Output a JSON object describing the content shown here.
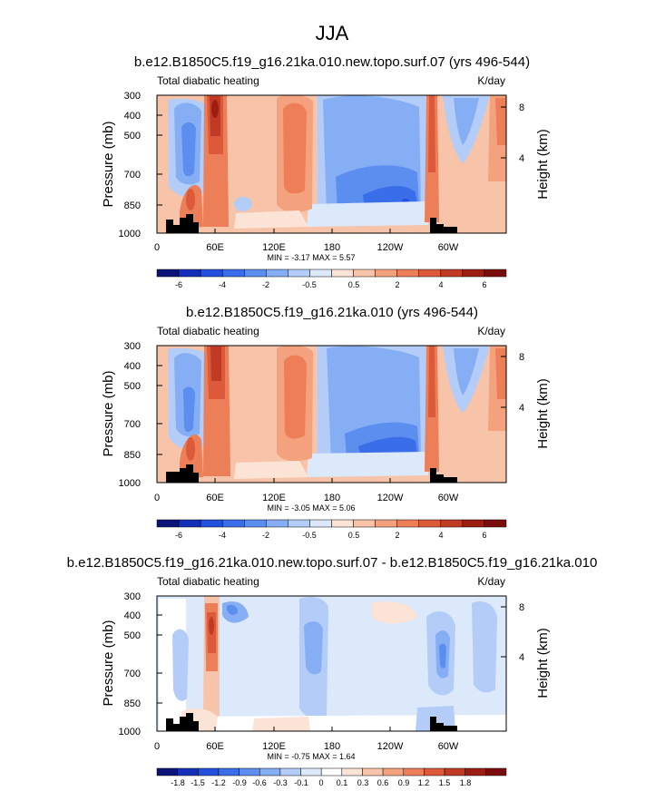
{
  "figure": {
    "title": "JJA"
  },
  "chart_data": [
    {
      "type": "heatmap",
      "title": "b.e12.B1850C5.f19_g16.21ka.010.new.topo.surf.07 (yrs 496-544)",
      "left_label": "Total diabatic heating",
      "right_label": "K/day",
      "ylabel": "Pressure (mb)",
      "ylabel_right": "Height (km)",
      "x_ticks": [
        "0",
        "60E",
        "120E",
        "180",
        "120W",
        "60W"
      ],
      "y_ticks": [
        "300",
        "400",
        "500",
        "700",
        "850",
        "1000"
      ],
      "height_ticks": [
        "8",
        "4"
      ],
      "stats": "MIN = -3.17 MAX = 5.57",
      "colorbar_labels": [
        "-6",
        "-4",
        "-2",
        "-0.5",
        "0.5",
        "2",
        "4",
        "6"
      ]
    },
    {
      "type": "heatmap",
      "title": "b.e12.B1850C5.f19_g16.21ka.010 (yrs 496-544)",
      "left_label": "Total diabatic heating",
      "right_label": "K/day",
      "ylabel": "Pressure (mb)",
      "ylabel_right": "Height (km)",
      "x_ticks": [
        "0",
        "60E",
        "120E",
        "180",
        "120W",
        "60W"
      ],
      "y_ticks": [
        "300",
        "400",
        "500",
        "700",
        "850",
        "1000"
      ],
      "height_ticks": [
        "8",
        "4"
      ],
      "stats": "MIN = -3.05 MAX = 5.06",
      "colorbar_labels": [
        "-6",
        "-4",
        "-2",
        "-0.5",
        "0.5",
        "2",
        "4",
        "6"
      ]
    },
    {
      "type": "heatmap",
      "title": "b.e12.B1850C5.f19_g16.21ka.010.new.topo.surf.07 - b.e12.B1850C5.f19_g16.21ka.010",
      "left_label": "Total diabatic heating",
      "right_label": "K/day",
      "ylabel": "Pressure (mb)",
      "ylabel_right": "Height (km)",
      "x_ticks": [
        "0",
        "60E",
        "120E",
        "180",
        "120W",
        "60W"
      ],
      "y_ticks": [
        "300",
        "400",
        "500",
        "700",
        "850",
        "1000"
      ],
      "height_ticks": [
        "8",
        "4"
      ],
      "stats": "MIN = -0.75 MAX = 1.64",
      "colorbar_labels": [
        "-1.8",
        "-1.5",
        "-1.2",
        "-0.9",
        "-0.6",
        "-0.3",
        "-0.1",
        "0",
        "0.1",
        "0.3",
        "0.6",
        "0.9",
        "1.2",
        "1.5",
        "1.8"
      ]
    }
  ],
  "colors": {
    "abs_scale": [
      "#0a1478",
      "#1530b8",
      "#2350dc",
      "#3a6ee8",
      "#5c8ef0",
      "#86aef4",
      "#b3cdf8",
      "#dce9fb",
      "#fbe3d6",
      "#f7c4a9",
      "#f3a27d",
      "#ec7e58",
      "#dc5a3a",
      "#c03a24",
      "#9c1e13",
      "#7a0c0c"
    ],
    "diff_scale": [
      "#0a1478",
      "#1530b8",
      "#2350dc",
      "#3a6ee8",
      "#5c8ef0",
      "#86aef4",
      "#b3cdf8",
      "#dce9fb",
      "#ffffff",
      "#fbe3d6",
      "#f7c4a9",
      "#f3a27d",
      "#ec7e58",
      "#dc5a3a",
      "#c03a24",
      "#9c1e13",
      "#7a0c0c"
    ]
  }
}
